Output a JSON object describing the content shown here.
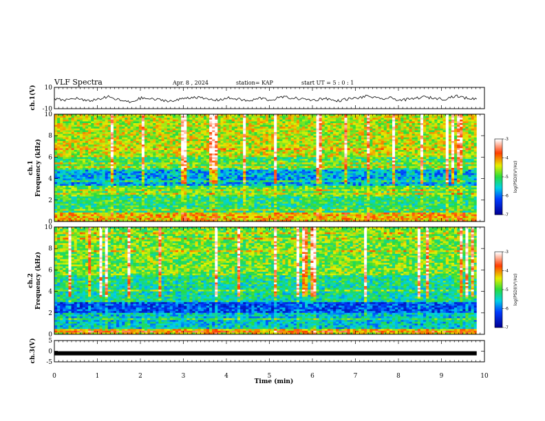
{
  "header": {
    "title": "VLF Spectra",
    "date": "Apr. 8 , 2024",
    "station": "station= KAP",
    "start": "start UT = 5 : 0 : 1"
  },
  "chart_data": [
    {
      "type": "line",
      "panel": "ch1-waveform",
      "ylabel": "ch.1(V)",
      "ylim": [
        -10,
        10
      ],
      "yticks": [
        "10",
        "-10"
      ],
      "x_range_min": [
        0,
        9.82
      ],
      "y_approx": [
        -1,
        -2,
        0,
        -3,
        -1,
        1,
        -2,
        -4,
        0,
        -1,
        -2,
        -3,
        0,
        1,
        -1,
        -2,
        0,
        -1,
        -3,
        0,
        -2,
        1,
        0,
        -1,
        -2,
        0,
        -3,
        -1,
        0,
        2,
        -1,
        0,
        -2,
        -1,
        1,
        0,
        -1,
        2,
        0,
        -1
      ]
    },
    {
      "type": "heatmap",
      "panel": "ch1-spectrogram",
      "ylabel_line1": "ch.1",
      "ylabel_line2": "Frequency (kHz)",
      "ylim": [
        0,
        10
      ],
      "yticks": [
        "0",
        "2",
        "4",
        "6",
        "8",
        "10"
      ],
      "colorbar": {
        "label": "log(PSD)(V²/Hz)",
        "range": [
          -7,
          -3
        ],
        "ticks": [
          "-3",
          "-4",
          "-5",
          "-6",
          "-7"
        ]
      }
    },
    {
      "type": "heatmap",
      "panel": "ch2-spectrogram",
      "ylabel_line1": "ch.2",
      "ylabel_line2": "Frequency (kHz)",
      "ylim": [
        0,
        10
      ],
      "yticks": [
        "0",
        "2",
        "4",
        "6",
        "8",
        "10"
      ],
      "colorbar": {
        "label": "log(PSD)(V²/Hz)",
        "range": [
          -7,
          -3
        ],
        "ticks": [
          "-3",
          "-4",
          "-5",
          "-6",
          "-7"
        ]
      }
    },
    {
      "type": "line",
      "panel": "ch3-waveform",
      "ylabel": "ch.3(V)",
      "ylim": [
        -5,
        5
      ],
      "yticks": [
        "5",
        "0",
        "-5"
      ],
      "y_approx": [
        -1.0,
        -1.0
      ]
    }
  ],
  "xaxis": {
    "label": "Time (min)",
    "xlim": [
      0,
      10
    ],
    "ticks": [
      "0",
      "1",
      "2",
      "3",
      "4",
      "5",
      "6",
      "7",
      "8",
      "9",
      "10"
    ]
  }
}
